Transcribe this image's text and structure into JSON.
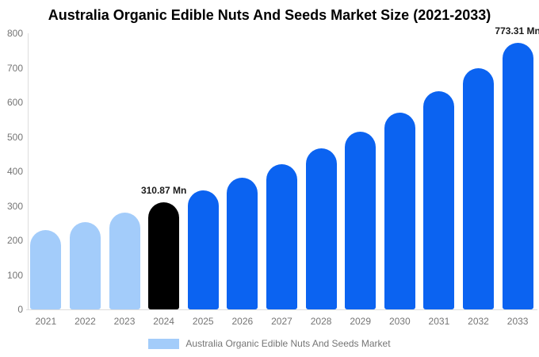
{
  "title": "Australia Organic Edible Nuts And Seeds Market Size (2021-2033)",
  "legend": {
    "label": "Australia Organic Edible Nuts And Seeds Market",
    "swatch_color": "#A3CCFA"
  },
  "colors": {
    "historical_bar": "#A3CCFA",
    "base_year_bar": "#000000",
    "forecast_bar": "#0B63F1",
    "axis_line": "#DDDDDD",
    "tick_text": "#757575",
    "title_text": "#000000",
    "annotation_text": "#1A1A1A",
    "background": "#FFFFFF"
  },
  "chart_data": {
    "type": "bar",
    "title": "Australia Organic Edible Nuts And Seeds Market Size (2021-2033)",
    "xlabel": "",
    "ylabel": "",
    "unit": "Mn",
    "ylim": [
      0,
      800
    ],
    "y_ticks": [
      0,
      100,
      200,
      300,
      400,
      500,
      600,
      700,
      800
    ],
    "grid": false,
    "legend_position": "bottom",
    "categories": [
      "2021",
      "2022",
      "2023",
      "2024",
      "2025",
      "2026",
      "2027",
      "2028",
      "2029",
      "2030",
      "2031",
      "2032",
      "2033"
    ],
    "values": [
      229.4,
      253.8,
      280.9,
      310.87,
      344.0,
      380.6,
      421.2,
      466.1,
      515.8,
      570.8,
      631.6,
      698.9,
      773.31
    ],
    "bar_roles": [
      "historical",
      "historical",
      "historical",
      "base_year",
      "forecast",
      "forecast",
      "forecast",
      "forecast",
      "forecast",
      "forecast",
      "forecast",
      "forecast",
      "forecast"
    ],
    "annotations": [
      {
        "category": "2024",
        "text": "310.87 Mn"
      },
      {
        "category": "2033",
        "text": "773.31 Mn"
      }
    ]
  }
}
